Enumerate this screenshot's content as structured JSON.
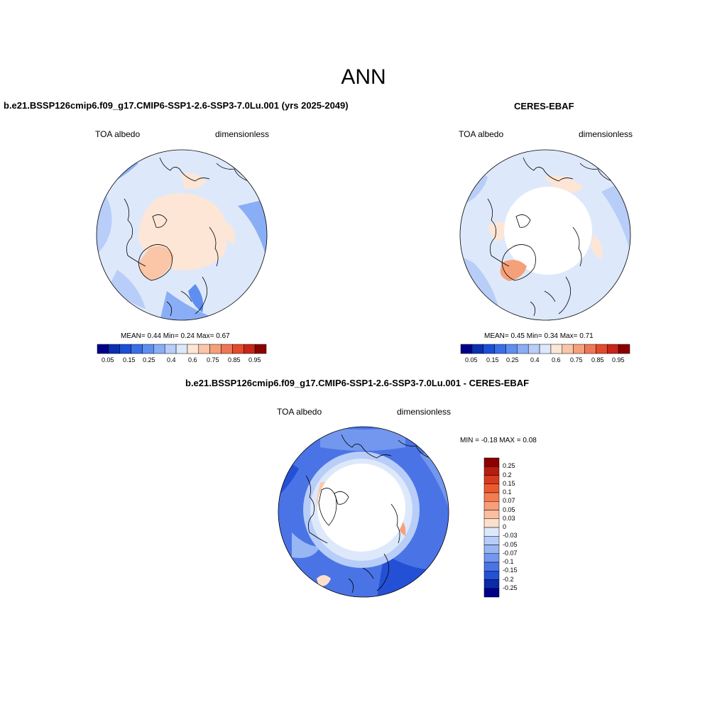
{
  "page_title": "ANN",
  "panels": [
    {
      "title": "b.e21.BSSP126cmip6.f09_g17.CMIP6-SSP1-2.6-SSP3-7.0Lu.001 (yrs 2025-2049)",
      "variable": "TOA albedo",
      "units": "dimensionless",
      "stats": "MEAN=   0.44  Min=   0.24  Max=   0.67"
    },
    {
      "title": "CERES-EBAF",
      "variable": "TOA albedo",
      "units": "dimensionless",
      "stats": "MEAN=   0.45  Min=   0.34  Max=   0.71"
    },
    {
      "title": "b.e21.BSSP126cmip6.f09_g17.CMIP6-SSP1-2.6-SSP3-7.0Lu.001 - CERES-EBAF",
      "variable": "TOA albedo",
      "units": "dimensionless",
      "stats": "MIN =   -0.18 MAX =   0.08"
    }
  ],
  "colorbar_horizontal": {
    "colors": [
      "#00008b",
      "#0a2fb0",
      "#1a4fd8",
      "#3a6ee8",
      "#5e8ef0",
      "#89aef5",
      "#b8cdf8",
      "#dde9fb",
      "#fde6d6",
      "#fbc6a8",
      "#f6a07a",
      "#ef7654",
      "#e44a2c",
      "#c8261a",
      "#8b0000"
    ],
    "tick_labels": [
      "0.05",
      "0.15",
      "0.25",
      "0.4",
      "0.6",
      "0.75",
      "0.85",
      "0.95"
    ]
  },
  "colorbar_vertical": {
    "colors": [
      "#8b0000",
      "#b81c10",
      "#d83a1e",
      "#ec5a30",
      "#f47c50",
      "#f89e78",
      "#fbbfa0",
      "#fde0cc",
      "#dde9fb",
      "#b8cdf8",
      "#98b6f4",
      "#7397ee",
      "#4a74e6",
      "#2450d6",
      "#0a2aa8",
      "#00008b"
    ],
    "tick_labels": [
      "0.25",
      "0.2",
      "0.15",
      "0.1",
      "0.07",
      "0.05",
      "0.03",
      "0",
      "-0.03",
      "-0.05",
      "-0.07",
      "-0.1",
      "-0.15",
      "-0.2",
      "-0.25"
    ]
  }
}
